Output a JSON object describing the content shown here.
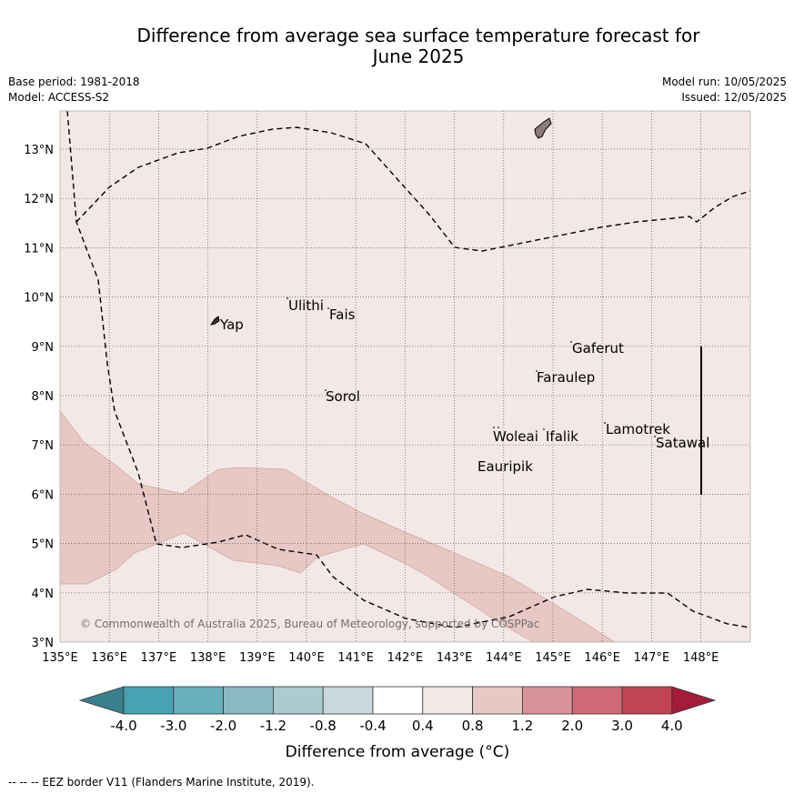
{
  "title_line1": "Difference from average sea surface temperature forecast for",
  "title_line2": "June 2025",
  "base_period": "Base period: 1981-2018",
  "model": "Model: ACCESS-S2",
  "model_run": "Model run: 10/05/2025",
  "issued": "Issued: 12/05/2025",
  "copyright": "© Commonwealth of Australia 2025, Bureau of Meteorology, supported by COSPPac",
  "footer_note": "-- -- -- EEZ border V11 (Flanders Marine Institute, 2019).",
  "x_ticks": [
    "135°E",
    "136°E",
    "137°E",
    "138°E",
    "139°E",
    "140°E",
    "141°E",
    "142°E",
    "143°E",
    "144°E",
    "145°E",
    "146°E",
    "147°E",
    "148°E"
  ],
  "y_ticks": [
    "3°N",
    "4°N",
    "5°N",
    "6°N",
    "7°N",
    "8°N",
    "9°N",
    "10°N",
    "11°N",
    "12°N",
    "13°N"
  ],
  "places": [
    "Yap",
    "Ulithi",
    "Fais",
    "Sorol",
    "Gaferut",
    "Faraulep",
    "Woleai",
    "Ifalik",
    "Eauripik",
    "Lamotrek",
    "Satawal"
  ],
  "legend": {
    "label": "Difference from average (°C)",
    "ticks": [
      "-4.0",
      "-3.0",
      "-2.0",
      "-1.2",
      "-0.8",
      "-0.4",
      "0.4",
      "0.8",
      "1.2",
      "2.0",
      "3.0",
      "4.0"
    ],
    "colors": [
      "#3a7f8c",
      "#47a3b4",
      "#6aafbd",
      "#8ab9c5",
      "#abcad1",
      "#c8d8de",
      "#ffffff",
      "#f4e8e6",
      "#e8c8c4",
      "#d8939a",
      "#cd6a75",
      "#c04454",
      "#a51c3a"
    ]
  },
  "colors": {
    "land": "#8c7c7c",
    "weak_warm": "#f4e8e6",
    "moderate_warm": "#e8c8c4"
  }
}
